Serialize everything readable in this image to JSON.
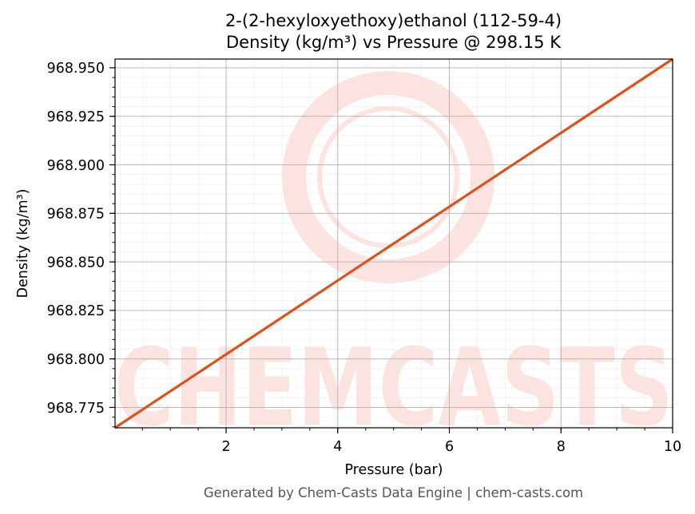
{
  "chart_data": {
    "type": "line",
    "title": "2-(2-hexyloxyethoxy)ethanol (112-59-4)",
    "subtitle": "Density (kg/m³) vs Pressure @ 298.15 K",
    "xlabel": "Pressure (bar)",
    "ylabel": "Density (kg/m³)",
    "xlim": [
      0.01,
      10
    ],
    "ylim": [
      968.7645,
      968.9545
    ],
    "x_ticks": [
      2,
      4,
      6,
      8,
      10
    ],
    "x_tick_labels": [
      "2",
      "4",
      "6",
      "8",
      "10"
    ],
    "y_ticks": [
      968.775,
      968.8,
      968.825,
      968.85,
      968.875,
      968.9,
      968.925,
      968.95
    ],
    "y_tick_labels": [
      "968.775",
      "968.800",
      "968.825",
      "968.850",
      "968.875",
      "968.900",
      "968.925",
      "968.950"
    ],
    "grid": true,
    "series": [
      {
        "x": [
          0.01,
          10
        ],
        "y": [
          968.7645,
          968.9545
        ],
        "color": "#d9531e"
      }
    ],
    "watermark": "CHEMCASTS"
  },
  "footer": "Generated by Chem-Casts Data Engine | chem-casts.com",
  "colors": {
    "line": "#d9531e",
    "watermark": "#fde3df"
  }
}
